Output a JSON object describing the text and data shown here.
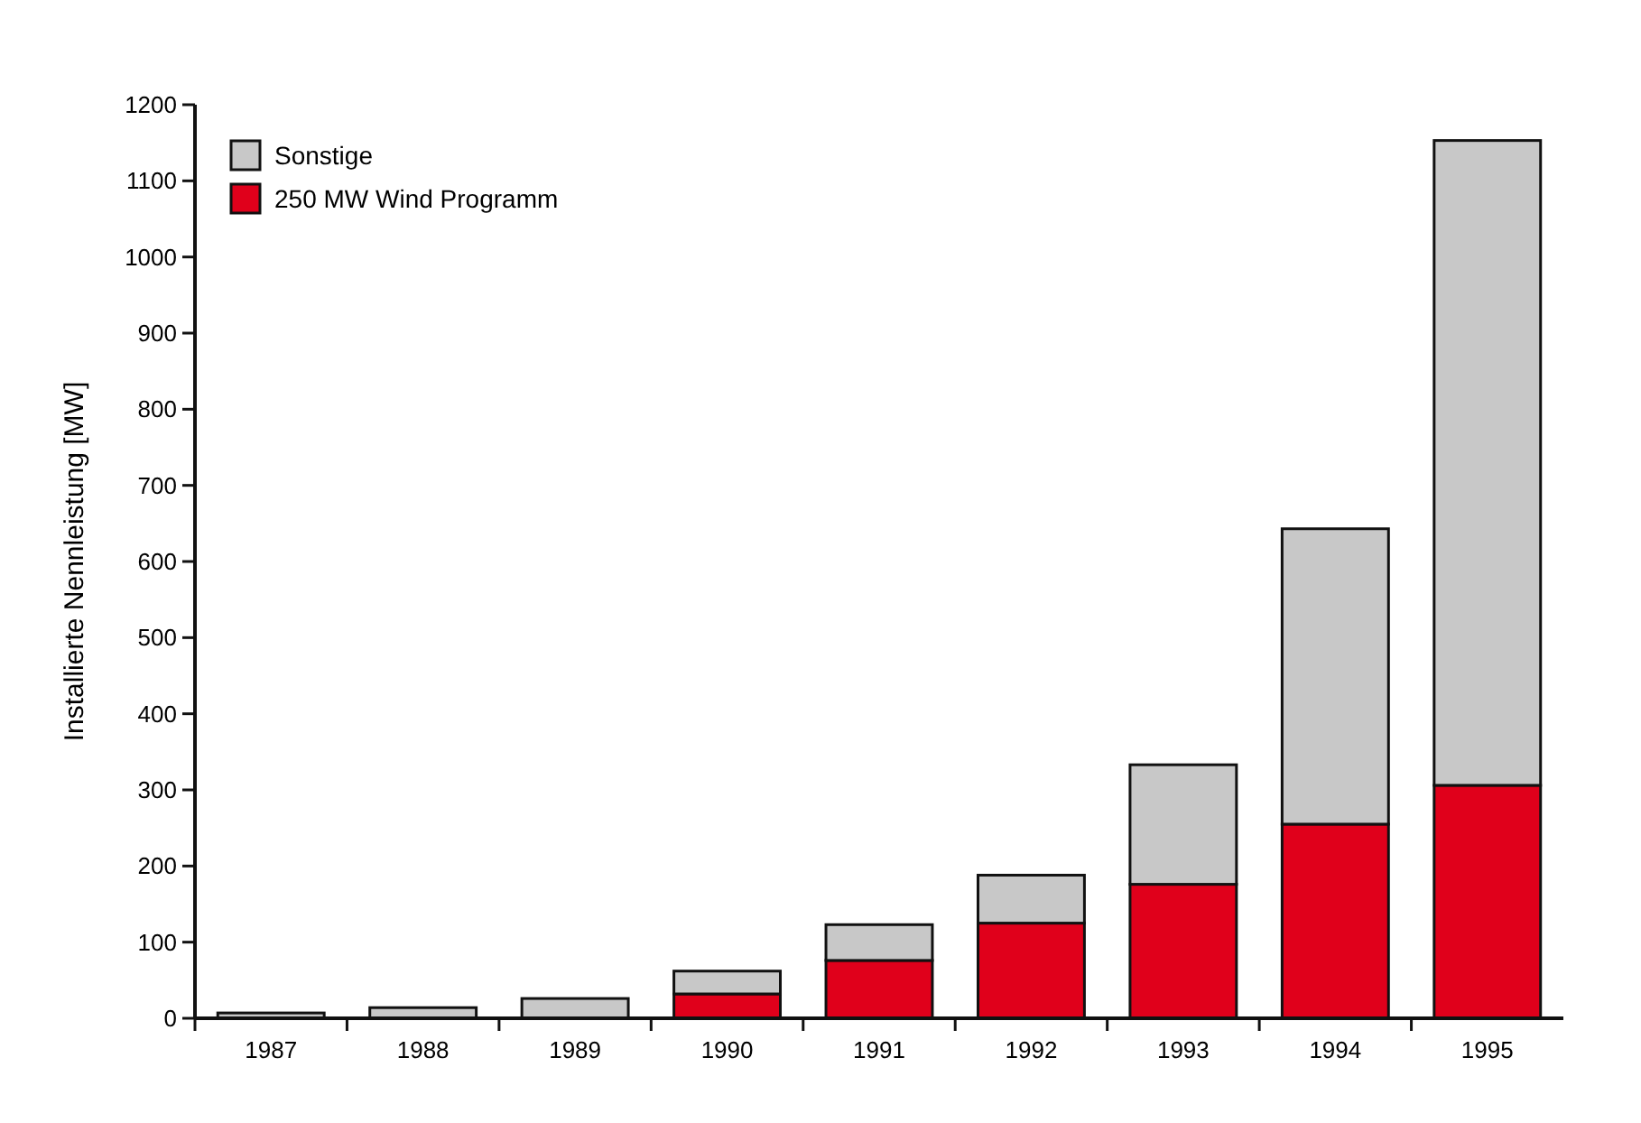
{
  "chart_data": {
    "type": "bar",
    "stacked": true,
    "ylabel": "Installierte Nennleistung [MW]",
    "categories": [
      "1987",
      "1988",
      "1989",
      "1990",
      "1991",
      "1992",
      "1993",
      "1994",
      "1995"
    ],
    "series": [
      {
        "name": "250 MW Wind Programm",
        "color": "#e0001b",
        "values": [
          0,
          0,
          null,
          32,
          76,
          125,
          176,
          255,
          306
        ]
      },
      {
        "name": "Sonstige",
        "color": "#c8c8c8",
        "values": [
          7,
          14,
          26,
          30,
          47,
          63,
          157,
          388,
          847
        ]
      }
    ],
    "ylim": [
      0,
      1200
    ],
    "yticks": [
      0,
      100,
      200,
      300,
      400,
      500,
      600,
      700,
      800,
      900,
      1000,
      1100,
      1200
    ],
    "grid": false,
    "legend": "top left"
  }
}
